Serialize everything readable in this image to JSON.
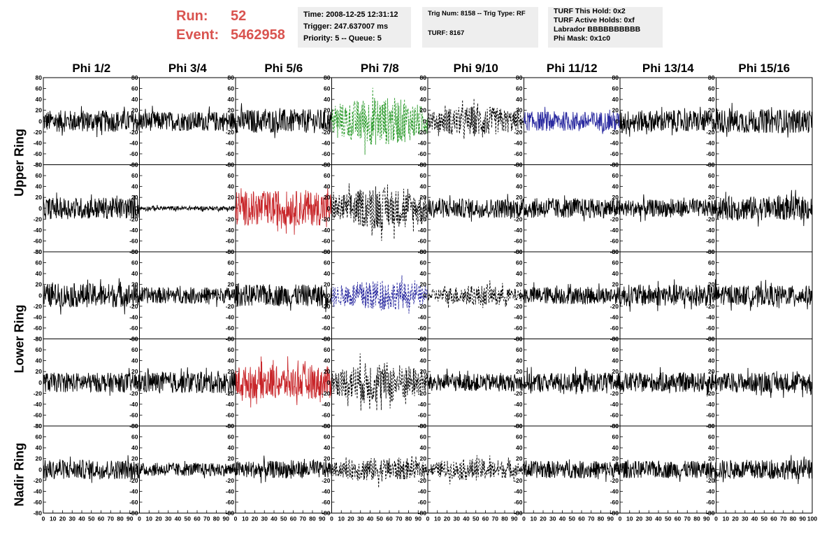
{
  "run": {
    "run_label": "Run:",
    "run_value": "52",
    "event_label": "Event:",
    "event_value": "5462958"
  },
  "info1": {
    "time": "Time: 2008-12-25 12:31:12",
    "trigger": "Trigger: 247.637007 ms",
    "priority": "Priority: 5 -- Queue: 5"
  },
  "info2": {
    "trig": "Trig Num: 8158 -- Trig Type: RF",
    "turf": "TURF: 8167"
  },
  "info3": {
    "hold": "TURF This Hold: 0x2",
    "active": "TURF Active Holds: 0xf",
    "labrador": "Labrador BBBBBBBBBB",
    "phimask": "Phi Mask: 0x1c0"
  },
  "phi_labels": [
    "Phi 1/2",
    "Phi 3/4",
    "Phi 5/6",
    "Phi 7/8",
    "Phi 9/10",
    "Phi 11/12",
    "Phi 13/14",
    "Phi 15/16"
  ],
  "ring_labels": {
    "upper": "Upper Ring",
    "lower": "Lower Ring",
    "nadir": "Nadir Ring"
  },
  "y_ticks": [
    "80",
    "60",
    "40",
    "20",
    "0",
    "-20",
    "-40",
    "-60",
    "-80"
  ],
  "x_ticks": [
    "0",
    "10",
    "20",
    "30",
    "40",
    "50",
    "60",
    "70",
    "80",
    "90",
    "100"
  ],
  "colors": {
    "run": "#d9534f",
    "trace": "#000000",
    "green": "#2a9a2a",
    "blue": "#2a2aa0",
    "red": "#c8262a"
  },
  "chart_data": {
    "type": "line",
    "xlim": [
      0,
      100
    ],
    "ylim": [
      -80,
      80
    ],
    "rows": [
      "Upper Ring top",
      "Upper Ring bottom",
      "Lower Ring top",
      "Lower Ring bottom",
      "Nadir Ring"
    ],
    "columns": [
      "Phi 1/2",
      "Phi 3/4",
      "Phi 5/6",
      "Phi 7/8",
      "Phi 9/10",
      "Phi 11/12",
      "Phi 13/14",
      "Phi 15/16"
    ],
    "panels": [
      [
        {
          "amp": 20,
          "style": "solid",
          "color": "trace"
        },
        {
          "amp": 18,
          "style": "solid",
          "color": "trace"
        },
        {
          "amp": 22,
          "style": "solid",
          "color": "trace"
        },
        {
          "amp": 45,
          "style": "dashed",
          "color": "green"
        },
        {
          "amp": 28,
          "style": "dashed",
          "color": "trace"
        },
        {
          "amp": 18,
          "style": "solid",
          "color": "blue"
        },
        {
          "amp": 20,
          "style": "solid",
          "color": "trace"
        },
        {
          "amp": 22,
          "style": "solid",
          "color": "trace"
        }
      ],
      [
        {
          "amp": 20,
          "style": "solid",
          "color": "trace"
        },
        {
          "amp": 4,
          "style": "solid",
          "color": "trace"
        },
        {
          "amp": 32,
          "style": "solid",
          "color": "red"
        },
        {
          "amp": 38,
          "style": "dashed",
          "color": "trace"
        },
        {
          "amp": 18,
          "style": "solid",
          "color": "trace"
        },
        {
          "amp": 18,
          "style": "solid",
          "color": "trace"
        },
        {
          "amp": 16,
          "style": "solid",
          "color": "trace"
        },
        {
          "amp": 22,
          "style": "solid",
          "color": "trace"
        }
      ],
      [
        {
          "amp": 22,
          "style": "solid",
          "color": "trace"
        },
        {
          "amp": 15,
          "style": "solid",
          "color": "trace"
        },
        {
          "amp": 20,
          "style": "solid",
          "color": "trace"
        },
        {
          "amp": 28,
          "style": "dashed",
          "color": "blue"
        },
        {
          "amp": 18,
          "style": "dashed",
          "color": "trace"
        },
        {
          "amp": 16,
          "style": "solid",
          "color": "trace"
        },
        {
          "amp": 20,
          "style": "solid",
          "color": "trace"
        },
        {
          "amp": 18,
          "style": "solid",
          "color": "trace"
        }
      ],
      [
        {
          "amp": 18,
          "style": "solid",
          "color": "trace"
        },
        {
          "amp": 20,
          "style": "solid",
          "color": "trace"
        },
        {
          "amp": 30,
          "style": "solid",
          "color": "red"
        },
        {
          "amp": 38,
          "style": "dashed",
          "color": "trace"
        },
        {
          "amp": 16,
          "style": "solid",
          "color": "trace"
        },
        {
          "amp": 18,
          "style": "solid",
          "color": "trace"
        },
        {
          "amp": 18,
          "style": "solid",
          "color": "trace"
        },
        {
          "amp": 18,
          "style": "solid",
          "color": "trace"
        }
      ],
      [
        {
          "amp": 18,
          "style": "solid",
          "color": "trace"
        },
        {
          "amp": 12,
          "style": "solid",
          "color": "trace"
        },
        {
          "amp": 16,
          "style": "solid",
          "color": "trace"
        },
        {
          "amp": 22,
          "style": "dashed",
          "color": "trace"
        },
        {
          "amp": 20,
          "style": "dashed",
          "color": "trace"
        },
        {
          "amp": 16,
          "style": "solid",
          "color": "trace"
        },
        {
          "amp": 16,
          "style": "solid",
          "color": "trace"
        },
        {
          "amp": 18,
          "style": "solid",
          "color": "trace"
        }
      ]
    ]
  }
}
